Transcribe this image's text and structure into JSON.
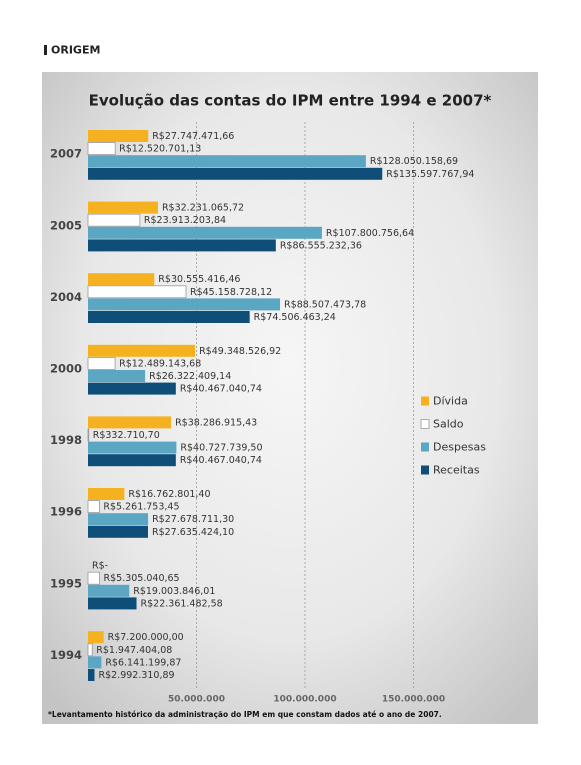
{
  "header": {
    "label": "ORIGEM"
  },
  "chart_data": {
    "type": "bar",
    "orientation": "horizontal",
    "title": "Evolução das contas do IPM entre 1994 e 2007*",
    "footnote": "*Levantamento histórico da administração do IPM em que constam dados até o ano de 2007.",
    "categories": [
      "2007",
      "2005",
      "2004",
      "2000",
      "1998",
      "1996",
      "1995",
      "1994"
    ],
    "xlim": [
      0,
      200000000
    ],
    "xticks": [
      {
        "value": 50000000,
        "label": "50.000.000"
      },
      {
        "value": 100000000,
        "label": "100.000.000"
      },
      {
        "value": 150000000,
        "label": "150.000.000"
      }
    ],
    "grid": true,
    "legend": "right",
    "series": [
      {
        "name": "Dívida",
        "color": "#f5b120",
        "values": [
          27747471.66,
          32231065.72,
          30555416.46,
          49348526.92,
          38286915.43,
          16762801.4,
          0,
          7200000.0
        ],
        "value_labels": [
          "R$27.747.471,66",
          "R$32.231.065,72",
          "R$30.555.416,46",
          "R$49.348.526,92",
          "R$38.286.915,43",
          "R$16.762.801,40",
          "R$-",
          "R$7.200.000,00"
        ]
      },
      {
        "name": "Saldo",
        "color": "#ffffff",
        "values": [
          12520701.13,
          23913203.84,
          45158728.12,
          12489143.68,
          332710.7,
          5261753.45,
          5305040.65,
          1947404.08
        ],
        "value_labels": [
          "R$12.520.701,13",
          "R$23.913.203,84",
          "R$45.158.728,12",
          "R$12.489.143,68",
          "R$332.710,70",
          "R$5.261.753,45",
          "R$5.305.040,65",
          "R$1.947.404,08"
        ]
      },
      {
        "name": "Despesas",
        "color": "#5ba7c3",
        "values": [
          128050158.69,
          107800756.64,
          88507473.78,
          26322409.14,
          40727739.5,
          27678711.3,
          19003846.01,
          6141199.87
        ],
        "value_labels": [
          "R$128.050.158,69",
          "R$107.800.756,64",
          "R$88.507.473,78",
          "R$26.322.409,14",
          "R$40.727.739,50",
          "R$27.678.711,30",
          "R$19.003.846,01",
          "R$6.141.199,87"
        ]
      },
      {
        "name": "Receitas",
        "color": "#0e4e79",
        "values": [
          135597767.94,
          86555232.36,
          74506463.24,
          40467040.74,
          40467040.74,
          27635424.1,
          22361482.58,
          2992310.89
        ],
        "value_labels": [
          "R$135.597.767,94",
          "R$86.555.232,36",
          "R$74.506.463,24",
          "R$40.467.040,74",
          "R$40.467.040,74",
          "R$27.635.424,10",
          "R$22.361.482,58",
          "R$2.992.310,89"
        ]
      }
    ]
  }
}
